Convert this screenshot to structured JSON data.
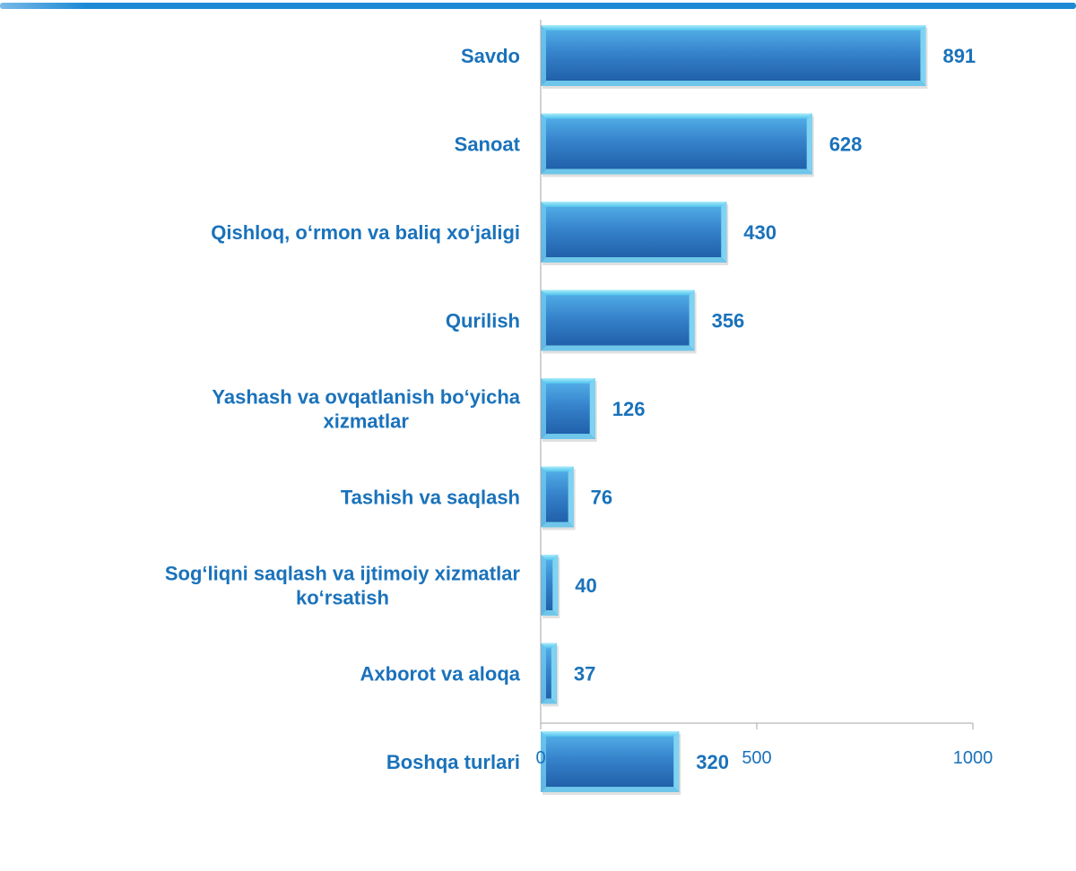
{
  "colors": {
    "accent": "#1a72bb",
    "bar_top": "#4aa8e2",
    "bar_bottom": "#1d5fa8",
    "bar_bevel": "#8fe0f5",
    "axis": "#a6a6a6",
    "label_text": "#1a72bb",
    "top_rule": "#1e8ad6"
  },
  "chart_data": {
    "type": "bar",
    "orientation": "horizontal",
    "title": "",
    "xlabel": "",
    "ylabel": "",
    "xlim": [
      0,
      1000
    ],
    "grid": false,
    "legend": "none",
    "categories": [
      [
        "Savdo"
      ],
      [
        "Sanoat"
      ],
      [
        "Qishloq, o‘rmon va baliq xo‘jaligi"
      ],
      [
        "Qurilish"
      ],
      [
        "Yashash va ovqatlanish bo‘yicha",
        "xizmatlar"
      ],
      [
        "Tashish va saqlash"
      ],
      [
        "Sog‘liqni saqlash va ijtimoiy xizmatlar",
        "ko‘rsatish"
      ],
      [
        "Axborot va aloqa"
      ],
      [
        "Boshqa turlari"
      ]
    ],
    "values": [
      891,
      628,
      430,
      356,
      126,
      76,
      40,
      37,
      320
    ],
    "value_labels": [
      "891",
      "628",
      "430",
      "356",
      "126",
      "76",
      "40",
      "37",
      "320"
    ],
    "x_ticks": [
      0,
      500,
      1000
    ],
    "x_tick_labels": [
      "0",
      "500",
      "1000"
    ]
  }
}
